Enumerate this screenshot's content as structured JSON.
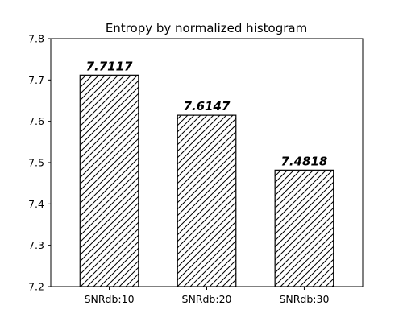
{
  "chart_data": {
    "type": "bar",
    "title": "Entropy by normalized histogram",
    "xlabel": "",
    "ylabel": "",
    "categories": [
      "SNRdb:10",
      "SNRdb:20",
      "SNRdb:30"
    ],
    "values": [
      7.7117,
      7.6147,
      7.4818
    ],
    "value_labels": [
      "7.7117",
      "7.6147",
      "7.4818"
    ],
    "ylim": [
      7.2,
      7.8
    ],
    "yticks": [
      "7.2",
      "7.3",
      "7.4",
      "7.5",
      "7.6",
      "7.7",
      "7.8"
    ],
    "grid": false,
    "bar_fill": "#ffffff",
    "bar_edge": "#000000",
    "bar_hatch": "diagonal"
  }
}
